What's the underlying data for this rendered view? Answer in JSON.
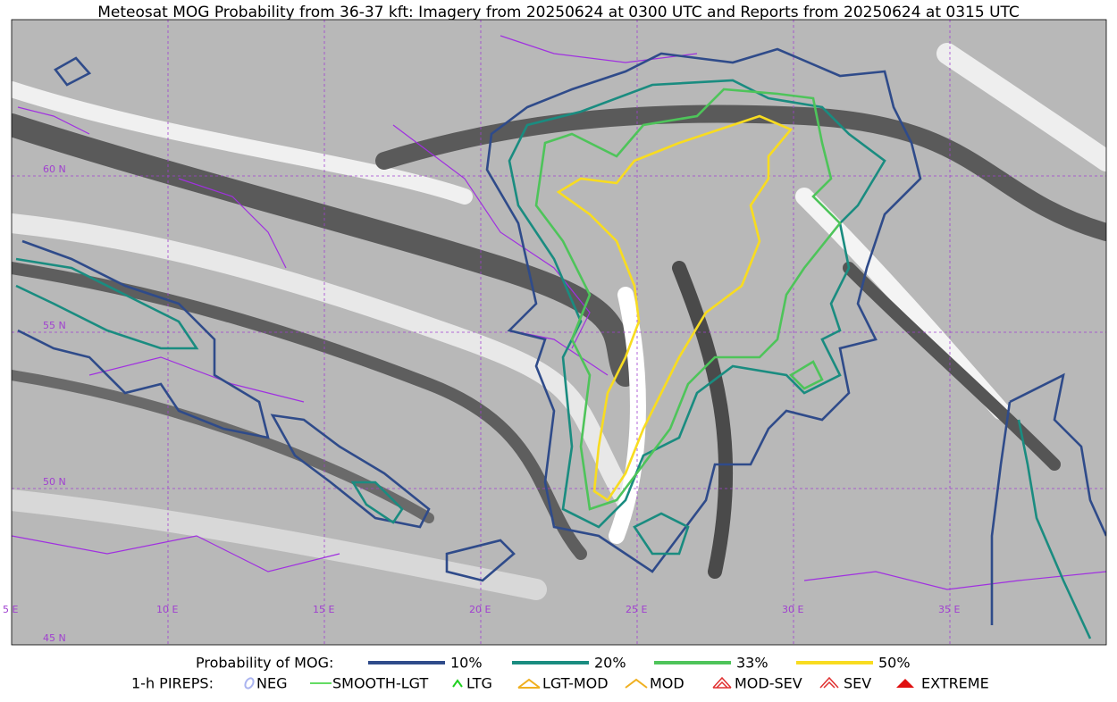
{
  "title": "Meteosat MOG Probability from 36-37 kft: Imagery from 20250624 at 0300 UTC and Reports from 20250624 at 0315 UTC",
  "map": {
    "lat_labels": [
      "60 N",
      "55 N",
      "50 N",
      "45 N"
    ],
    "lon_labels": [
      "5 E",
      "10 E",
      "15 E",
      "20 E",
      "25 E",
      "30 E",
      "35 E"
    ]
  },
  "legend": {
    "probability": {
      "title": "Probability of MOG:",
      "items": [
        {
          "label": "10%",
          "color": "#2f4b8a"
        },
        {
          "label": "20%",
          "color": "#1a8c80"
        },
        {
          "label": "33%",
          "color": "#4ec45a"
        },
        {
          "label": "50%",
          "color": "#f8dc20"
        }
      ]
    },
    "pireps": {
      "title": "1-h PIREPS:",
      "items": [
        {
          "label": "NEG",
          "color": "#aab4f0"
        },
        {
          "label": "SMOOTH-LGT",
          "color": "#30d030"
        },
        {
          "label": "LTG",
          "color": "#20d020"
        },
        {
          "label": "LGT-MOD",
          "color": "#f0b020"
        },
        {
          "label": "MOD",
          "color": "#f0b020"
        },
        {
          "label": "MOD-SEV",
          "color": "#e03030"
        },
        {
          "label": "SEV",
          "color": "#e03030"
        },
        {
          "label": "EXTREME",
          "color": "#e01010"
        }
      ]
    }
  }
}
